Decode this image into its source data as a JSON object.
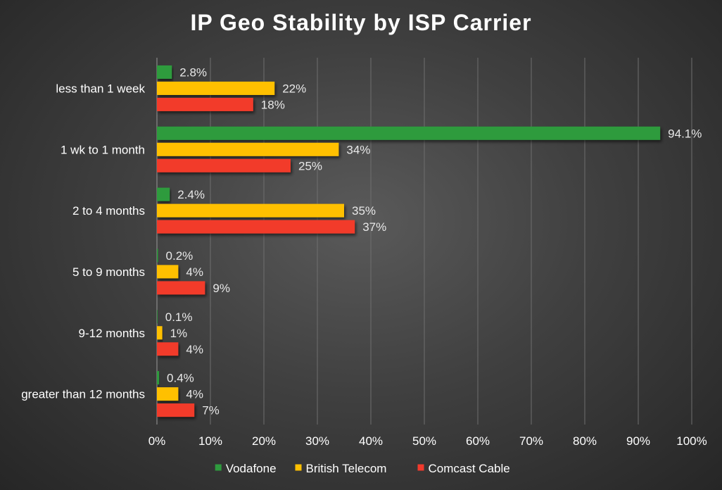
{
  "chart_data": {
    "type": "bar",
    "orientation": "horizontal",
    "title": "IP Geo Stability by ISP Carrier",
    "categories": [
      "less than 1 week",
      "1 wk to 1 month",
      "2 to 4 months",
      "5 to 9 months",
      "9-12 months",
      "greater than 12 months"
    ],
    "series": [
      {
        "name": "Vodafone",
        "color": "#2e9b3e",
        "values": [
          2.8,
          94.1,
          2.4,
          0.2,
          0.1,
          0.4
        ],
        "labels": [
          "2.8%",
          "94.1%",
          "2.4%",
          "0.2%",
          "0.1%",
          "0.4%"
        ]
      },
      {
        "name": "British Telecom",
        "color": "#ffc000",
        "values": [
          22,
          34,
          35,
          4,
          1,
          4
        ],
        "labels": [
          "22%",
          "34%",
          "35%",
          "4%",
          "1%",
          "4%"
        ]
      },
      {
        "name": "Comcast Cable",
        "color": "#f23a2c",
        "values": [
          18,
          25,
          37,
          9,
          4,
          7
        ],
        "labels": [
          "18%",
          "25%",
          "37%",
          "9%",
          "4%",
          "7%"
        ]
      }
    ],
    "xlim": [
      0,
      100
    ],
    "xticks": [
      "0%",
      "10%",
      "20%",
      "30%",
      "40%",
      "50%",
      "60%",
      "70%",
      "80%",
      "90%",
      "100%"
    ],
    "xlabel": "",
    "ylabel": "",
    "grid": true,
    "legend_position": "bottom"
  }
}
